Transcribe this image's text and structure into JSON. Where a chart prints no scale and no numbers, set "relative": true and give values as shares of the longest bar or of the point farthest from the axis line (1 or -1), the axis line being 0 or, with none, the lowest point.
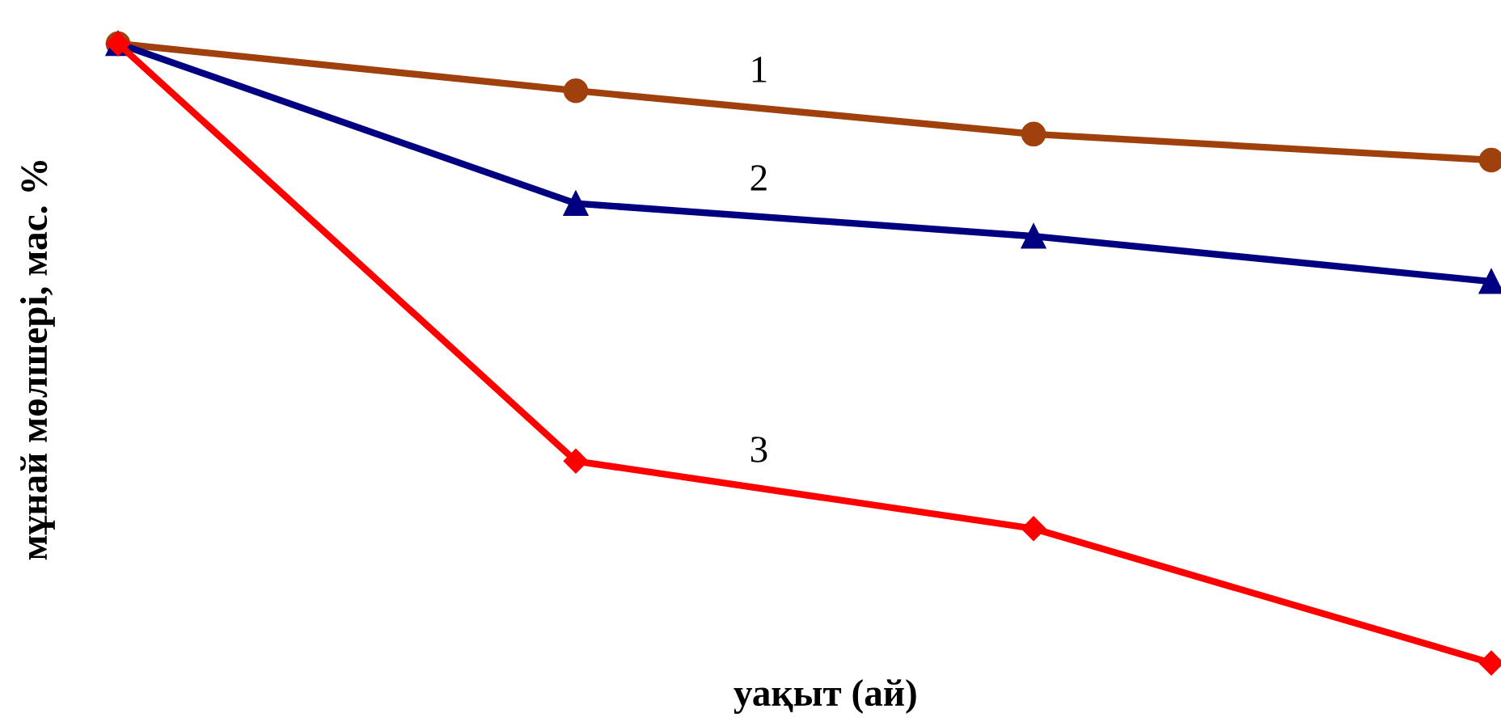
{
  "chart_data": {
    "type": "line",
    "relative": true,
    "xlabel": "уақыт (ай)",
    "ylabel": "мұнай мөлшері, мас. %",
    "categories": [
      null,
      null,
      null,
      null
    ],
    "series": [
      {
        "name": "1",
        "color": "#a0410d",
        "marker": "circle",
        "values": [
          1,
          0.924,
          0.854,
          0.812
        ]
      },
      {
        "name": "2",
        "color": "#000080",
        "marker": "triangle",
        "values": [
          1,
          0.742,
          0.689,
          0.616
        ]
      },
      {
        "name": "3",
        "color": "#ff0000",
        "marker": "diamond",
        "values": [
          1,
          0.326,
          0.217,
          0
        ]
      }
    ],
    "legend": false,
    "grid": false,
    "line_style": "solid"
  }
}
